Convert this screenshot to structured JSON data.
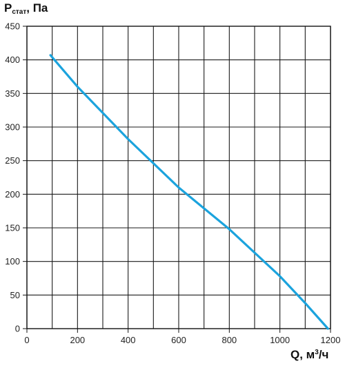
{
  "chart_data": {
    "type": "line",
    "ylabel": {
      "main": "P",
      "sub": "стат",
      "suffix": ", Па"
    },
    "xlabel": {
      "main": "Q, м",
      "sup": "3",
      "suffix": "/ч"
    },
    "xlim": [
      0,
      1200
    ],
    "ylim": [
      0,
      450
    ],
    "x_ticks": [
      0,
      200,
      400,
      600,
      800,
      1000,
      1200
    ],
    "y_ticks": [
      0,
      50,
      100,
      150,
      200,
      250,
      300,
      350,
      400,
      450
    ],
    "grid": true,
    "series": [
      {
        "color": "#1ba3dd",
        "x": [
          93,
          200,
          400,
          600,
          800,
          1000,
          1100,
          1190
        ],
        "y": [
          407,
          360,
          282,
          210,
          148,
          78,
          38,
          0
        ]
      }
    ]
  }
}
